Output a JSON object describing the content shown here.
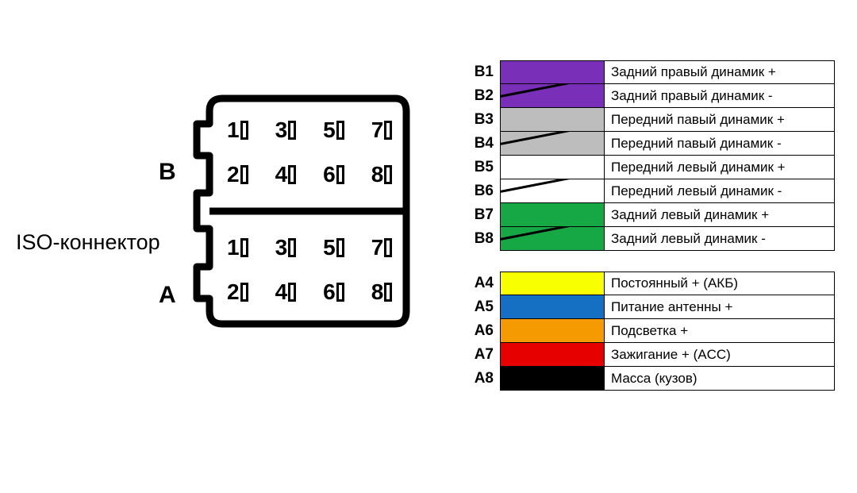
{
  "title": "ISO-коннектор",
  "connector": {
    "sections": [
      {
        "label": "B",
        "rows": [
          [
            1,
            3,
            5,
            7
          ],
          [
            2,
            4,
            6,
            8
          ]
        ]
      },
      {
        "label": "A",
        "rows": [
          [
            1,
            3,
            5,
            7
          ],
          [
            2,
            4,
            6,
            8
          ]
        ]
      }
    ]
  },
  "legend_groups": [
    {
      "rows": [
        {
          "code": "B1",
          "color": "#7a2fb8",
          "striped": false,
          "desc": "Задний правый динамик +"
        },
        {
          "code": "B2",
          "color": "#7a2fb8",
          "striped": true,
          "desc": "Задний правый динамик -"
        },
        {
          "code": "B3",
          "color": "#bdbdbd",
          "striped": false,
          "desc": "Передний павый динамик +"
        },
        {
          "code": "B4",
          "color": "#bdbdbd",
          "striped": true,
          "desc": "Передний павый динамик -"
        },
        {
          "code": "B5",
          "color": "#ffffff",
          "striped": false,
          "desc": "Передний левый динамик +"
        },
        {
          "code": "B6",
          "color": "#ffffff",
          "striped": true,
          "desc": "Передний левый динамик -"
        },
        {
          "code": "B7",
          "color": "#15a845",
          "striped": false,
          "desc": "Задний левый динамик +"
        },
        {
          "code": "B8",
          "color": "#15a845",
          "striped": true,
          "desc": "Задний левый динамик -"
        }
      ]
    },
    {
      "rows": [
        {
          "code": "A4",
          "color": "#f8ff00",
          "striped": false,
          "desc": "Постоянный + (АКБ)"
        },
        {
          "code": "A5",
          "color": "#1570c4",
          "striped": false,
          "desc": "Питание антенны +"
        },
        {
          "code": "A6",
          "color": "#f59a00",
          "striped": false,
          "desc": "Подсветка +"
        },
        {
          "code": "A7",
          "color": "#e60000",
          "striped": false,
          "desc": "Зажигание + (ACC)"
        },
        {
          "code": "A8",
          "color": "#000000",
          "striped": false,
          "desc": "Масса (кузов)"
        }
      ]
    }
  ],
  "style": {
    "background": "#ffffff",
    "border_color": "#000000",
    "font_main": 19,
    "font_pin": 28,
    "font_label": 30,
    "font_title": 27,
    "stroke_width": 9
  }
}
